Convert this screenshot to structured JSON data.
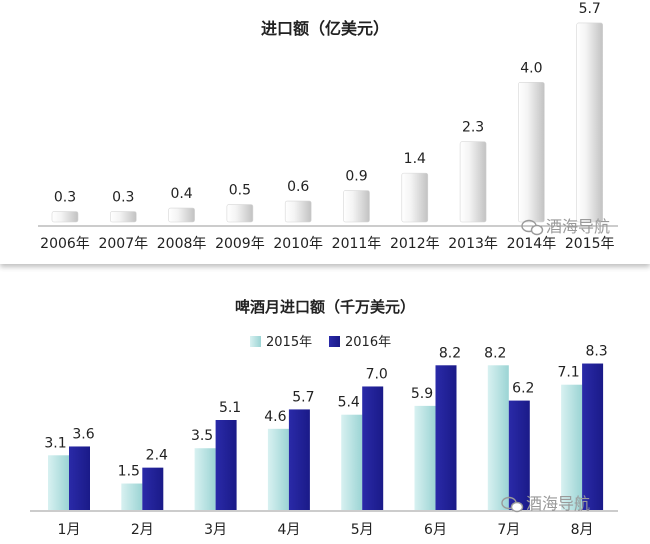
{
  "charts": [
    {
      "title": "进口额（亿美元）",
      "watermark": "酒海导航",
      "watermark_icon": "wechat-icon"
    },
    {
      "title": "啤酒月进口额（千万美元）",
      "watermark": "酒海导航",
      "watermark_icon": "wechat-icon"
    }
  ],
  "chart_data": [
    {
      "type": "bar",
      "title": "进口额（亿美元）",
      "categories": [
        "2006年",
        "2007年",
        "2008年",
        "2009年",
        "2010年",
        "2011年",
        "2012年",
        "2013年",
        "2014年",
        "2015年"
      ],
      "values": [
        0.3,
        0.3,
        0.4,
        0.5,
        0.6,
        0.9,
        1.4,
        2.3,
        4.0,
        5.7
      ],
      "value_labels": [
        "0.3",
        "0.3",
        "0.4",
        "0.5",
        "0.6",
        "0.9",
        "1.4",
        "2.3",
        "4.0",
        "5.7"
      ],
      "ylim": [
        0,
        5.9
      ],
      "grid": false,
      "colors": {
        "bar_light": "#ffffff",
        "bar_dark": "#c2c2c2",
        "axis": "#999999"
      }
    },
    {
      "type": "bar",
      "title": "啤酒月进口额（千万美元）",
      "categories": [
        "1月",
        "2月",
        "3月",
        "4月",
        "5月",
        "6月",
        "7月",
        "8月"
      ],
      "series": [
        {
          "name": "2015年",
          "values": [
            3.1,
            1.5,
            3.5,
            4.6,
            5.4,
            5.9,
            8.2,
            7.1
          ],
          "labels": [
            "3.1",
            "1.5",
            "3.5",
            "4.6",
            "5.4",
            "5.9",
            "8.2",
            "7.1"
          ],
          "color": "#a8dcdc"
        },
        {
          "name": "2016年",
          "values": [
            3.6,
            2.4,
            5.1,
            5.7,
            7.0,
            8.2,
            6.2,
            8.3
          ],
          "labels": [
            "3.6",
            "2.4",
            "5.1",
            "5.7",
            "7.0",
            "8.2",
            "6.2",
            "8.3"
          ],
          "color": "#22229c"
        }
      ],
      "ylim": [
        0,
        8.5
      ],
      "grid": false,
      "legend": "top-center"
    }
  ]
}
